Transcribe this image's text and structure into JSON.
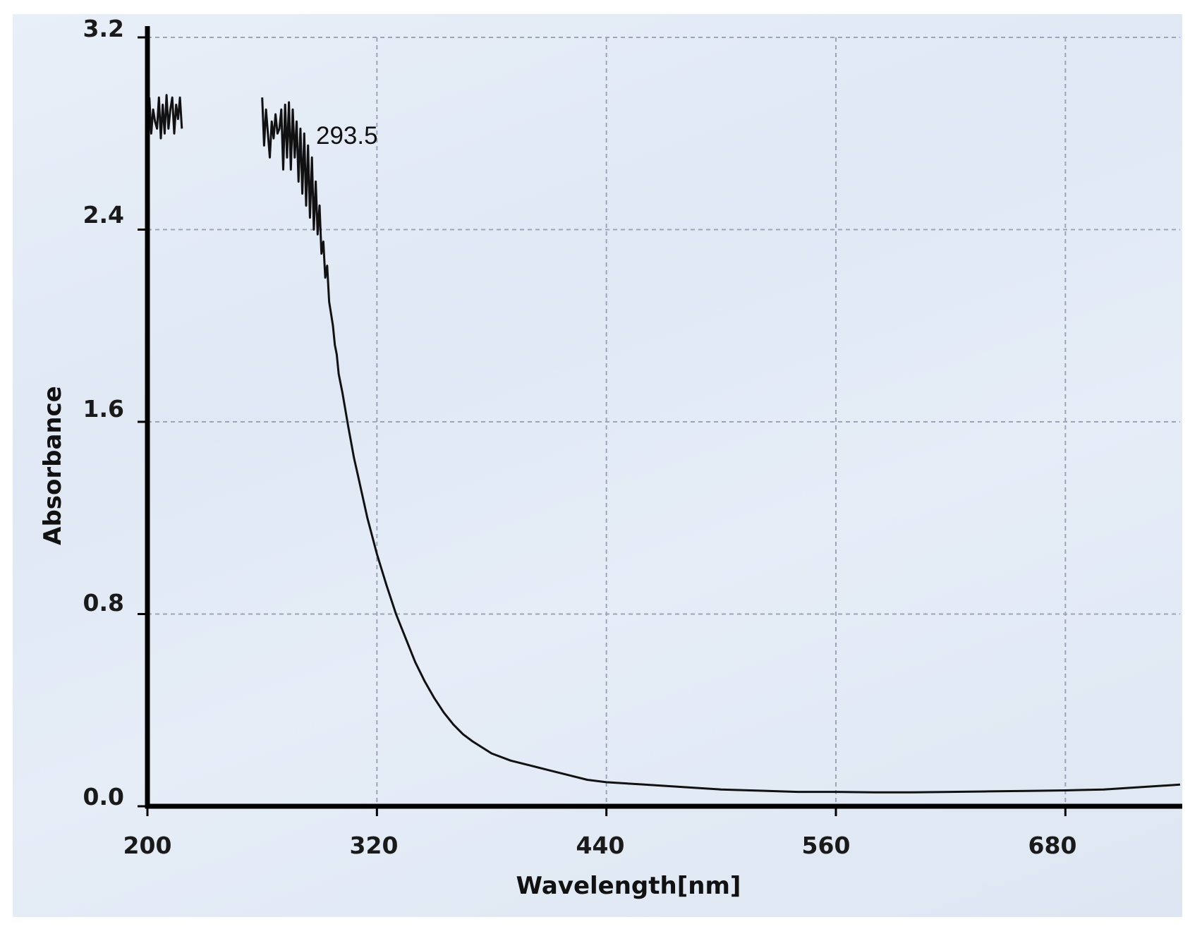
{
  "chart_data": {
    "type": "line",
    "title": "",
    "xlabel": "Wavelength[nm]",
    "ylabel": "Absorbance",
    "xlim": [
      200,
      740
    ],
    "ylim": [
      0.0,
      3.2
    ],
    "x_ticks": [
      "200",
      "320",
      "440",
      "560",
      "680"
    ],
    "x_tick_values": [
      200,
      320,
      440,
      560,
      680
    ],
    "y_ticks": [
      "0.0",
      "0.8",
      "1.6",
      "2.4",
      "3.2"
    ],
    "y_tick_values": [
      0.0,
      0.8,
      1.6,
      2.4,
      3.2
    ],
    "grid": true,
    "legend": "none",
    "annotations": [
      {
        "text": "293.5",
        "x": 293.5,
        "y": 2.78
      }
    ],
    "series": [
      {
        "x": [
          260,
          261,
          262,
          263,
          264,
          265,
          266,
          267,
          268,
          269,
          270,
          271,
          272,
          273,
          274,
          275,
          276,
          277,
          278,
          279,
          280,
          281,
          282,
          283,
          284,
          285,
          286,
          287,
          288,
          289,
          290,
          291,
          292,
          293,
          294,
          295,
          296,
          297,
          298,
          299,
          300,
          302,
          305,
          308,
          310,
          315,
          320,
          325,
          330,
          335,
          340,
          345,
          350,
          355,
          360,
          365,
          370,
          380,
          390,
          400,
          410,
          420,
          430,
          440,
          460,
          480,
          500,
          520,
          540,
          560,
          580,
          600,
          620,
          640,
          660,
          680,
          700,
          720,
          740
        ],
        "y": [
          2.95,
          2.75,
          2.9,
          2.8,
          2.7,
          2.85,
          2.78,
          2.88,
          2.8,
          2.82,
          2.9,
          2.65,
          2.92,
          2.7,
          2.93,
          2.65,
          2.9,
          2.7,
          2.85,
          2.6,
          2.82,
          2.55,
          2.8,
          2.5,
          2.75,
          2.45,
          2.7,
          2.4,
          2.6,
          2.38,
          2.5,
          2.3,
          2.35,
          2.2,
          2.25,
          2.1,
          2.05,
          2.0,
          1.92,
          1.88,
          1.8,
          1.72,
          1.58,
          1.45,
          1.38,
          1.2,
          1.05,
          0.92,
          0.8,
          0.7,
          0.6,
          0.52,
          0.45,
          0.39,
          0.34,
          0.3,
          0.27,
          0.22,
          0.19,
          0.17,
          0.15,
          0.13,
          0.11,
          0.1,
          0.09,
          0.08,
          0.07,
          0.065,
          0.06,
          0.06,
          0.058,
          0.058,
          0.06,
          0.062,
          0.064,
          0.066,
          0.07,
          0.08,
          0.09
        ]
      },
      {
        "x": [
          201,
          202,
          203,
          204,
          205,
          206,
          207,
          208,
          209,
          210,
          211,
          212,
          213,
          214,
          215,
          216,
          217,
          218
        ],
        "y": [
          2.95,
          2.8,
          2.9,
          2.85,
          2.82,
          2.95,
          2.78,
          2.92,
          2.8,
          2.96,
          2.82,
          2.9,
          2.95,
          2.8,
          2.92,
          2.86,
          2.95,
          2.82
        ]
      }
    ]
  }
}
